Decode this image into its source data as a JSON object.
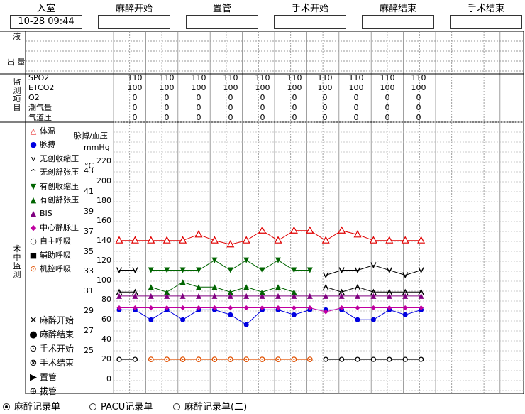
{
  "header": {
    "labels": [
      "入室",
      "麻醉开始",
      "置管",
      "手术开始",
      "麻醉结束",
      "手术结束"
    ],
    "values": [
      "10-28 09:44",
      "",
      "",
      "",
      "",
      ""
    ]
  },
  "left_labels": {
    "fluid": "液",
    "output": "出 量",
    "monitor_section": "监测项目",
    "intraop_section": "术中监测"
  },
  "monitor": {
    "rows": [
      {
        "name": "SPO2",
        "values": [
          "110",
          "110",
          "110",
          "110",
          "110",
          "110",
          "110",
          "110",
          "110",
          "110"
        ]
      },
      {
        "name": "ETCO2",
        "values": [
          "100",
          "100",
          "100",
          "100",
          "100",
          "100",
          "100",
          "100",
          "100",
          "100"
        ]
      },
      {
        "name": "O2",
        "values": [
          "0",
          "0",
          "0",
          "0",
          "0",
          "0",
          "0",
          "0",
          "0",
          "0"
        ]
      },
      {
        "name": "潮气量",
        "values": [
          "0",
          "0",
          "0",
          "0",
          "0",
          "0",
          "0",
          "0",
          "0",
          "0"
        ]
      },
      {
        "name": "气道压",
        "values": [
          "0",
          "0",
          "0",
          "0",
          "0",
          "0",
          "0",
          "0",
          "0",
          "0"
        ]
      }
    ]
  },
  "axis": {
    "pressure_title": "脉搏/血压",
    "pressure_unit": "mmHg",
    "temp_unit": "°C",
    "pressure_ticks": [
      "220",
      "200",
      "180",
      "160",
      "140",
      "120",
      "100",
      "80",
      "60",
      "40",
      "20",
      "0"
    ],
    "temp_ticks": [
      "43",
      "41",
      "39",
      "37",
      "35",
      "33",
      "31",
      "29",
      "27",
      "25"
    ]
  },
  "legend": [
    {
      "symbol": "△",
      "color": "#e00000",
      "label": "体温"
    },
    {
      "symbol": "●",
      "color": "#0000e0",
      "label": "脉搏"
    },
    {
      "symbol": "v",
      "color": "#000000",
      "label": "无创收缩压"
    },
    {
      "symbol": "^",
      "color": "#000000",
      "label": "无创舒张压"
    },
    {
      "symbol": "▼",
      "color": "#006400",
      "label": "有创收缩压"
    },
    {
      "symbol": "▲",
      "color": "#006400",
      "label": "有创舒张压"
    },
    {
      "symbol": "▲",
      "color": "#800080",
      "label": "BIS"
    },
    {
      "symbol": "◆",
      "color": "#c000a0",
      "label": "中心静脉压"
    },
    {
      "symbol": "○",
      "color": "#000000",
      "label": "自主呼吸"
    },
    {
      "symbol": "■",
      "color": "#000000",
      "label": "辅助呼吸"
    },
    {
      "symbol": "⊙",
      "color": "#e05000",
      "label": "机控呼吸"
    }
  ],
  "events_legend": [
    {
      "symbol": "✕",
      "label": "麻醉开始"
    },
    {
      "symbol": "●",
      "label": "麻醉结束"
    },
    {
      "symbol": "⊙",
      "label": "手术开始"
    },
    {
      "symbol": "⊗",
      "label": "手术结束"
    },
    {
      "symbol": "▶",
      "label": "置管"
    },
    {
      "symbol": "⊕",
      "label": "拔管"
    }
  ],
  "tabs": [
    {
      "label": "麻醉记录单",
      "selected": true
    },
    {
      "label": "PACU记录单",
      "selected": false
    },
    {
      "label": "麻醉记录单(二)",
      "selected": false
    }
  ],
  "chart_data": {
    "type": "line",
    "x": [
      1,
      2,
      3,
      4,
      5,
      6,
      7,
      8,
      9,
      10,
      11,
      12,
      13,
      14,
      15,
      16,
      17,
      18,
      19,
      20
    ],
    "series": [
      {
        "name": "体温",
        "color": "#e00000",
        "marker": "tri-open",
        "values": [
          140,
          140,
          140,
          140,
          140,
          146,
          140,
          136,
          140,
          150,
          140,
          150,
          150,
          140,
          150,
          146,
          140,
          140,
          140,
          140
        ]
      },
      {
        "name": "脉搏",
        "color": "#0000e0",
        "marker": "dot",
        "values": [
          70,
          70,
          60,
          70,
          60,
          70,
          70,
          65,
          55,
          70,
          70,
          65,
          70,
          70,
          70,
          60,
          60,
          70,
          65,
          70
        ]
      },
      {
        "name": "无创收缩压",
        "color": "#000000",
        "marker": "v",
        "values": [
          110,
          110,
          null,
          null,
          null,
          null,
          null,
          null,
          null,
          null,
          null,
          null,
          null,
          105,
          110,
          110,
          115,
          110,
          105,
          110
        ]
      },
      {
        "name": "无创舒张压",
        "color": "#000000",
        "marker": "caret",
        "values": [
          88,
          88,
          null,
          null,
          null,
          null,
          null,
          null,
          null,
          null,
          null,
          null,
          null,
          93,
          88,
          93,
          88,
          88,
          88,
          88
        ]
      },
      {
        "name": "有创收缩压",
        "color": "#006400",
        "marker": "tri-down",
        "values": [
          null,
          null,
          110,
          110,
          110,
          110,
          120,
          110,
          120,
          110,
          120,
          110,
          110,
          null,
          null,
          null,
          null,
          null,
          null,
          null
        ]
      },
      {
        "name": "有创舒张压",
        "color": "#006400",
        "marker": "tri-up",
        "values": [
          null,
          null,
          93,
          88,
          98,
          93,
          93,
          88,
          93,
          88,
          93,
          88,
          null,
          null,
          null,
          null,
          null,
          null,
          null,
          null
        ]
      },
      {
        "name": "BIS",
        "color": "#800080",
        "marker": "tri-up",
        "values": [
          84,
          84,
          84,
          84,
          84,
          84,
          84,
          84,
          84,
          84,
          84,
          84,
          84,
          84,
          84,
          84,
          84,
          84,
          84,
          84
        ]
      },
      {
        "name": "中心静脉压",
        "color": "#c000a0",
        "marker": "diamond",
        "values": [
          72,
          72,
          72,
          72,
          72,
          72,
          72,
          72,
          72,
          72,
          72,
          72,
          72,
          68,
          72,
          72,
          72,
          72,
          72,
          72
        ]
      },
      {
        "name": "自主呼吸",
        "color": "#000000",
        "marker": "circle-open",
        "values": [
          20,
          20,
          null,
          null,
          null,
          null,
          null,
          null,
          null,
          null,
          null,
          null,
          null,
          20,
          20,
          20,
          20,
          20,
          20,
          20
        ]
      },
      {
        "name": "机控呼吸",
        "color": "#e05000",
        "marker": "circle-dot",
        "values": [
          null,
          null,
          20,
          20,
          20,
          20,
          20,
          20,
          20,
          20,
          20,
          20,
          20,
          null,
          null,
          null,
          null,
          null,
          null,
          null
        ]
      }
    ],
    "ylim": [
      0,
      220
    ],
    "grid": true
  }
}
